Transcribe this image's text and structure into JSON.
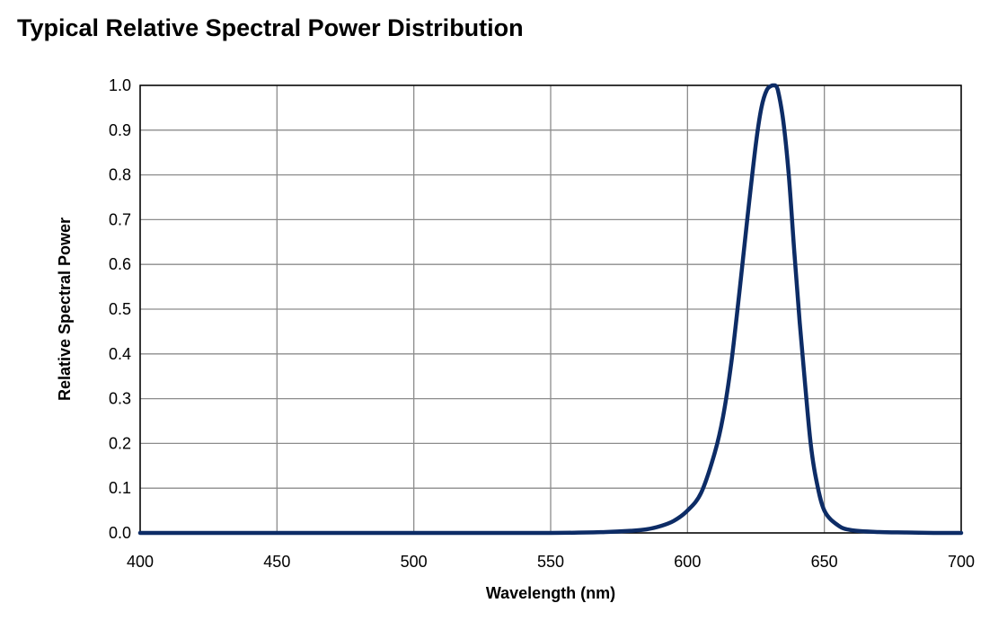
{
  "chart_data": {
    "type": "line",
    "title": "Typical Relative Spectral Power Distribution",
    "xlabel": "Wavelength (nm)",
    "ylabel": "Relative Spectral Power",
    "xlim": [
      400,
      700
    ],
    "ylim": [
      0,
      1.0
    ],
    "x_ticks": [
      "400",
      "450",
      "500",
      "550",
      "600",
      "650",
      "700"
    ],
    "y_ticks": [
      "0.0",
      "0.1",
      "0.2",
      "0.3",
      "0.4",
      "0.5",
      "0.6",
      "0.7",
      "0.8",
      "0.9",
      "1.0"
    ],
    "grid": true,
    "legend": "none",
    "series": [
      {
        "color": "#0d2c66",
        "x": [
          400,
          420,
          450,
          500,
          550,
          570,
          580,
          585,
          590,
          595,
          600,
          605,
          610,
          613,
          616,
          619,
          622,
          625,
          627,
          629,
          631,
          632,
          633,
          635,
          637,
          639,
          641,
          643,
          645,
          647,
          650,
          655,
          660,
          670,
          680,
          690,
          700
        ],
        "y": [
          0.0,
          0.0,
          0.0,
          0.0,
          0.0,
          0.002,
          0.005,
          0.008,
          0.015,
          0.027,
          0.05,
          0.09,
          0.18,
          0.26,
          0.38,
          0.54,
          0.71,
          0.87,
          0.95,
          0.99,
          1.0,
          1.0,
          0.99,
          0.92,
          0.8,
          0.63,
          0.47,
          0.33,
          0.2,
          0.12,
          0.05,
          0.017,
          0.006,
          0.002,
          0.001,
          0.0,
          0.0
        ]
      }
    ]
  }
}
